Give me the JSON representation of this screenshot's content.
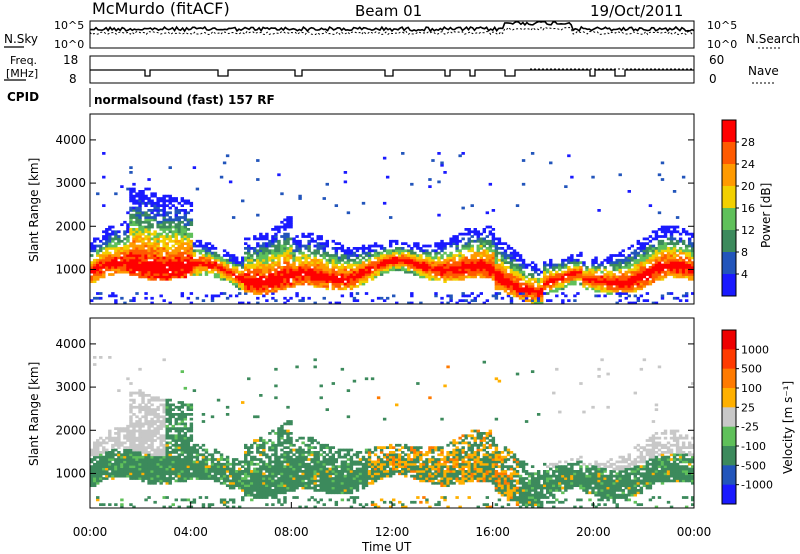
{
  "header": {
    "title": "McMurdo (fitACF)",
    "beam": "Beam 01",
    "date": "19/Oct/2011"
  },
  "top_panel": {
    "left_label": "N.Sky",
    "right_label": "N.Search",
    "left_ticks": [
      "10^5",
      "10^0"
    ],
    "right_ticks": [
      "10^5",
      "10^0"
    ]
  },
  "freq_panel": {
    "label_line1": "Freq.",
    "label_line2": "[MHz]",
    "right_label": "Nave",
    "left_ticks": [
      "18",
      "8"
    ],
    "right_ticks": [
      "60",
      "0"
    ]
  },
  "cpid": {
    "label": "CPID",
    "text": "normalsound (fast) 157 RF"
  },
  "chart_data": [
    {
      "type": "heatmap",
      "name": "power",
      "ylabel": "Slant Range [km]",
      "yticks": [
        1000,
        2000,
        3000,
        4000
      ],
      "ylim": [
        200,
        4600
      ],
      "xlim": [
        0,
        24
      ],
      "colorbar": {
        "label": "Power [dB]",
        "tick_labels": [
          "28",
          "24",
          "20",
          "16",
          "12",
          "8",
          "4"
        ],
        "colors": [
          "#1a1aff",
          "#2255bb",
          "#3c8a5c",
          "#5fc05a",
          "#f2d000",
          "#ff9a00",
          "#ff5a00",
          "#ff0000"
        ]
      }
    },
    {
      "type": "heatmap",
      "name": "velocity",
      "ylabel": "Slant Range [km]",
      "yticks": [
        1000,
        2000,
        3000,
        4000
      ],
      "ylim": [
        200,
        4600
      ],
      "xlim": [
        0,
        24
      ],
      "xticks": [
        "00:00",
        "04:00",
        "08:00",
        "12:00",
        "16:00",
        "20:00",
        "00:00"
      ],
      "xlabel": "Time UT",
      "colorbar": {
        "label": "Velocity [m s⁻¹]",
        "tick_labels": [
          "1000",
          "500",
          "100",
          "25",
          "-25",
          "-100",
          "-500",
          "-1000"
        ],
        "colors": [
          "#1a1aff",
          "#2255bb",
          "#3c8a5c",
          "#5fc05a",
          "#c8c8c8",
          "#ffb000",
          "#ff7a00",
          "#ff3a00",
          "#ee0000"
        ]
      }
    }
  ]
}
